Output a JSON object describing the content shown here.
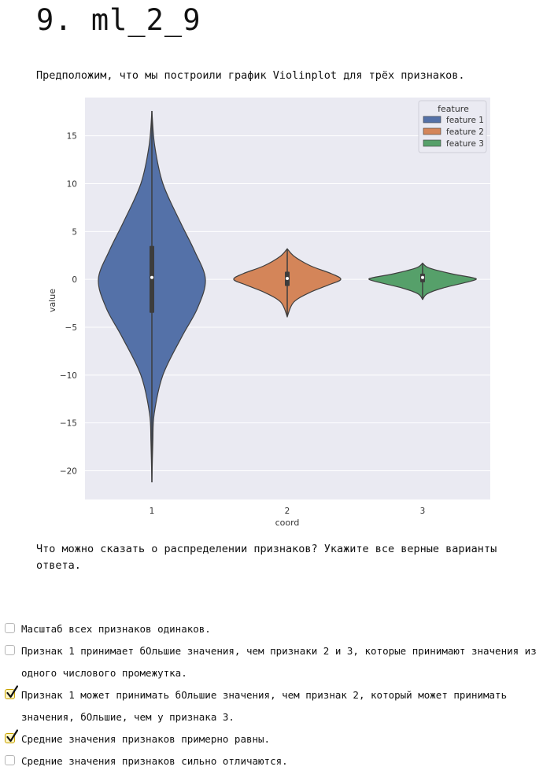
{
  "page": {
    "title": "9. ml_2_9",
    "intro": "Предположим, что мы построили график Violinplot для трёх признаков.",
    "question": "Что можно сказать о распределении признаков? Укажите все верные варианты ответа."
  },
  "answers": [
    {
      "label": "Масштаб всех признаков одинаков.",
      "checked": false
    },
    {
      "label": "Признак 1 принимает бОльшие значения, чем признаки 2 и 3, которые принимают значения из одного числового промежутка.",
      "checked": false
    },
    {
      "label": "Признак 1 может принимать бОльшие значения, чем признак 2, который может принимать значения, бОльшие, чем у признака 3.",
      "checked": true
    },
    {
      "label": "Средние значения признаков примерно равны.",
      "checked": true
    },
    {
      "label": "Средние значения признаков сильно отличаются.",
      "checked": false
    }
  ],
  "chart_data": {
    "type": "violin",
    "xlabel": "coord",
    "ylabel": "value",
    "categories": [
      "1",
      "2",
      "3"
    ],
    "ylim": [
      -23,
      19
    ],
    "yticks": [
      15,
      10,
      5,
      0,
      -5,
      -10,
      -15,
      -20
    ],
    "ytick_labels": [
      "15",
      "10",
      "5",
      "0",
      "−5",
      "−10",
      "−15",
      "−20"
    ],
    "legend": {
      "title": "feature",
      "position": "top-right",
      "entries": [
        "feature 1",
        "feature 2",
        "feature 3"
      ]
    },
    "series": [
      {
        "name": "feature 1",
        "color": "#5471a8",
        "min": -21.2,
        "max": 17.6,
        "q1": -3.5,
        "median": 0.2,
        "q3": 3.5,
        "density_max_at": 0
      },
      {
        "name": "feature 2",
        "color": "#d48559",
        "min": -3.9,
        "max": 3.2,
        "q1": -0.7,
        "median": 0.1,
        "q3": 0.8,
        "density_max_at": 0
      },
      {
        "name": "feature 3",
        "color": "#56a06a",
        "min": -2.1,
        "max": 1.7,
        "q1": -0.3,
        "median": 0.2,
        "q3": 0.6,
        "density_max_at": 0
      }
    ],
    "grid": true
  }
}
